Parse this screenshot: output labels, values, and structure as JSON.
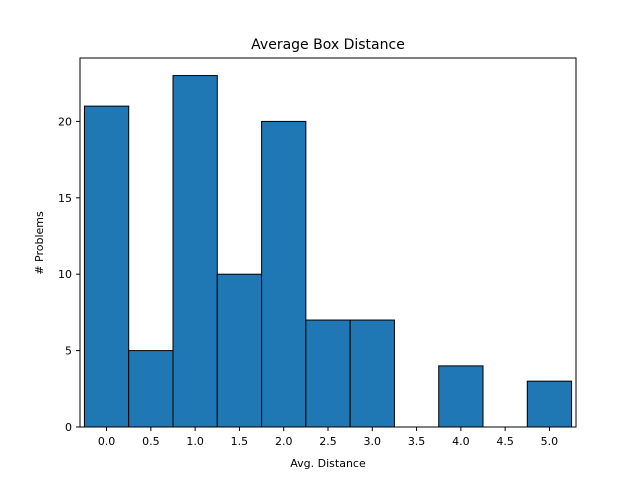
{
  "chart_data": {
    "type": "bar",
    "title": "Average Box Distance",
    "xlabel": "Avg. Distance",
    "ylabel": "# Problems",
    "bin_width": 0.5,
    "bins": [
      {
        "x": 0.0,
        "value": 21
      },
      {
        "x": 0.5,
        "value": 5
      },
      {
        "x": 1.0,
        "value": 23
      },
      {
        "x": 1.5,
        "value": 10
      },
      {
        "x": 2.0,
        "value": 20
      },
      {
        "x": 2.5,
        "value": 7
      },
      {
        "x": 3.0,
        "value": 7
      },
      {
        "x": 3.5,
        "value": 0
      },
      {
        "x": 4.0,
        "value": 4
      },
      {
        "x": 4.5,
        "value": 0
      },
      {
        "x": 5.0,
        "value": 3
      }
    ],
    "xticks": [
      "0.0",
      "0.5",
      "1.0",
      "1.5",
      "2.0",
      "2.5",
      "3.0",
      "3.5",
      "4.0",
      "4.5",
      "5.0"
    ],
    "yticks": [
      "0",
      "5",
      "10",
      "15",
      "20"
    ],
    "xlim": [
      -0.3,
      5.3
    ],
    "ylim": [
      0,
      24.15
    ],
    "grid": false,
    "bar_color": "#1f77b4",
    "edge_color": "#000000"
  }
}
